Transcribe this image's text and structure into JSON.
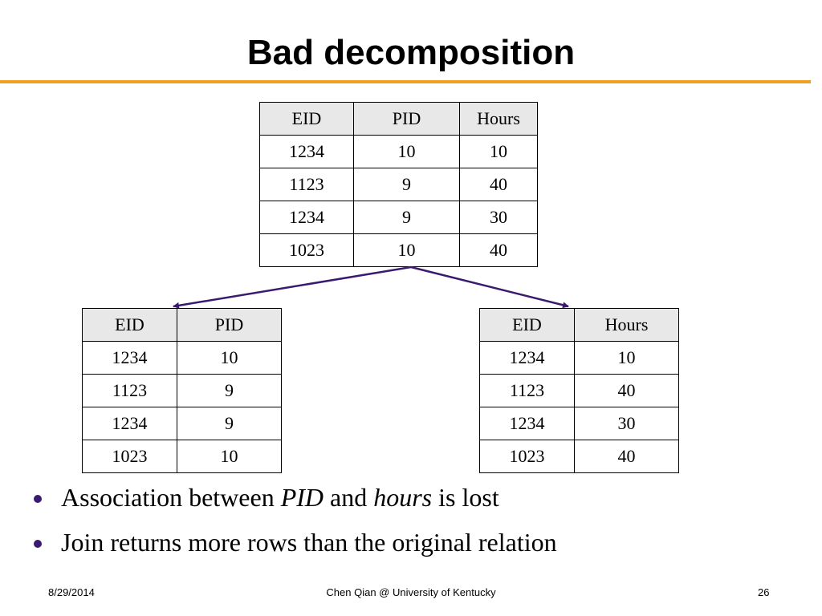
{
  "slide": {
    "title": "Bad decomposition",
    "original_table": {
      "headers": [
        "EID",
        "PID",
        "Hours"
      ],
      "rows": [
        [
          "1234",
          "10",
          "10"
        ],
        [
          "1123",
          "9",
          "40"
        ],
        [
          "1234",
          "9",
          "30"
        ],
        [
          "1023",
          "10",
          "40"
        ]
      ]
    },
    "left_table": {
      "headers": [
        "EID",
        "PID"
      ],
      "rows": [
        [
          "1234",
          "10"
        ],
        [
          "1123",
          "9"
        ],
        [
          "1234",
          "9"
        ],
        [
          "1023",
          "10"
        ]
      ]
    },
    "right_table": {
      "headers": [
        "EID",
        "Hours"
      ],
      "rows": [
        [
          "1234",
          "10"
        ],
        [
          "1123",
          "40"
        ],
        [
          "1234",
          "30"
        ],
        [
          "1023",
          "40"
        ]
      ]
    },
    "bullets": [
      {
        "pre": "Association between ",
        "em1": "PID",
        "mid": " and ",
        "em2": "hours",
        "post": " is lost"
      },
      {
        "text": "Join returns more rows than the original relation"
      }
    ],
    "colors": {
      "accent_rule": "#f0a020",
      "arrow": "#3a1a6e",
      "bullet": "#3a1a6e",
      "header_fill": "#e8e8e8"
    }
  },
  "footer": {
    "date": "8/29/2014",
    "center": "Chen Qian @ University of Kentucky",
    "page": "26"
  }
}
